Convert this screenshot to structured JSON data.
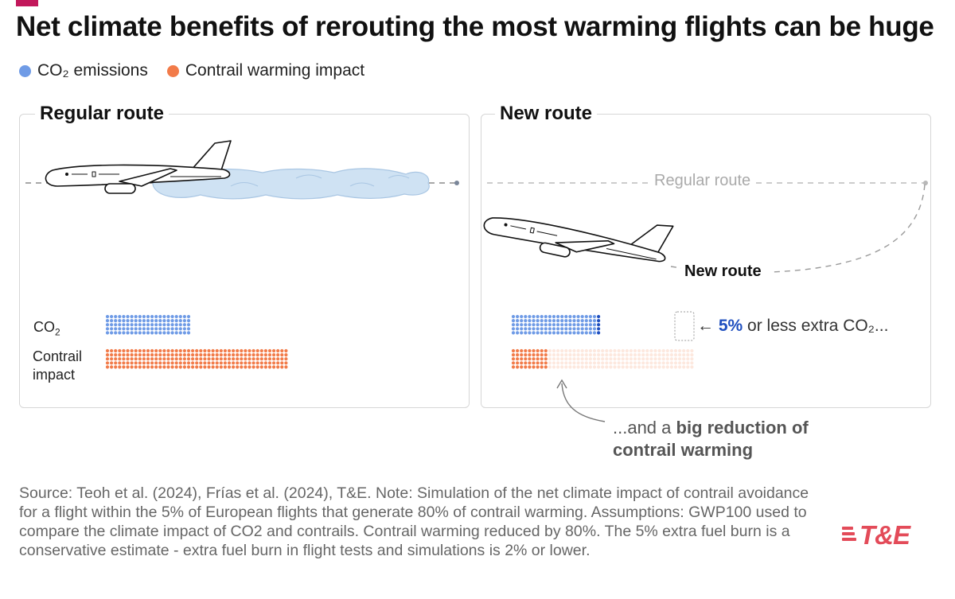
{
  "title": "Net climate benefits of rerouting the most warming flights can be huge",
  "legend": [
    {
      "label": "CO₂ emissions",
      "color": "#6f9be6"
    },
    {
      "label": "Contrail warming impact",
      "color": "#f27b49"
    }
  ],
  "panels": {
    "regular": {
      "title": "Regular route"
    },
    "new": {
      "title": "New route",
      "regular_route_label": "Regular route",
      "new_route_label": "New route"
    }
  },
  "row_labels": {
    "co2": "CO₂",
    "contrail": "Contrail impact"
  },
  "annotations": {
    "co2_pct": "5%",
    "co2_rest": " or less extra CO₂...",
    "reduction_prefix": "...and a ",
    "reduction_bold": "big reduction of contrail warming"
  },
  "source": "Source: Teoh et al. (2024), Frías et al. (2024), T&E. Note: Simulation of the net climate impact of contrail avoidance for a flight within the 5% of European flights that generate 80% of contrail warming. Assumptions: GWP100 used to compare the climate impact of CO2 and contrails. Contrail warming reduced by 80%. The 5% extra fuel burn is a conservative estimate - extra fuel burn in flight tests and simulations is 2% or lower.",
  "logo": "T&E",
  "chart_data": {
    "type": "waffle",
    "unit_label": "dot",
    "dot_rows": 5,
    "colors": {
      "co2": "#6f9be6",
      "co2_extra": "#1f4fbf",
      "contrail": "#f27b49",
      "contrail_avoided": "#fde8de"
    },
    "regular_route": {
      "co2_dots": 105,
      "contrail_dots": 225
    },
    "new_route": {
      "co2_dots": 105,
      "co2_extra_dots": 5,
      "contrail_dots": 45,
      "contrail_avoided_dots": 180
    },
    "extra_co2_percent": 5,
    "contrail_reduction_percent": 80
  }
}
